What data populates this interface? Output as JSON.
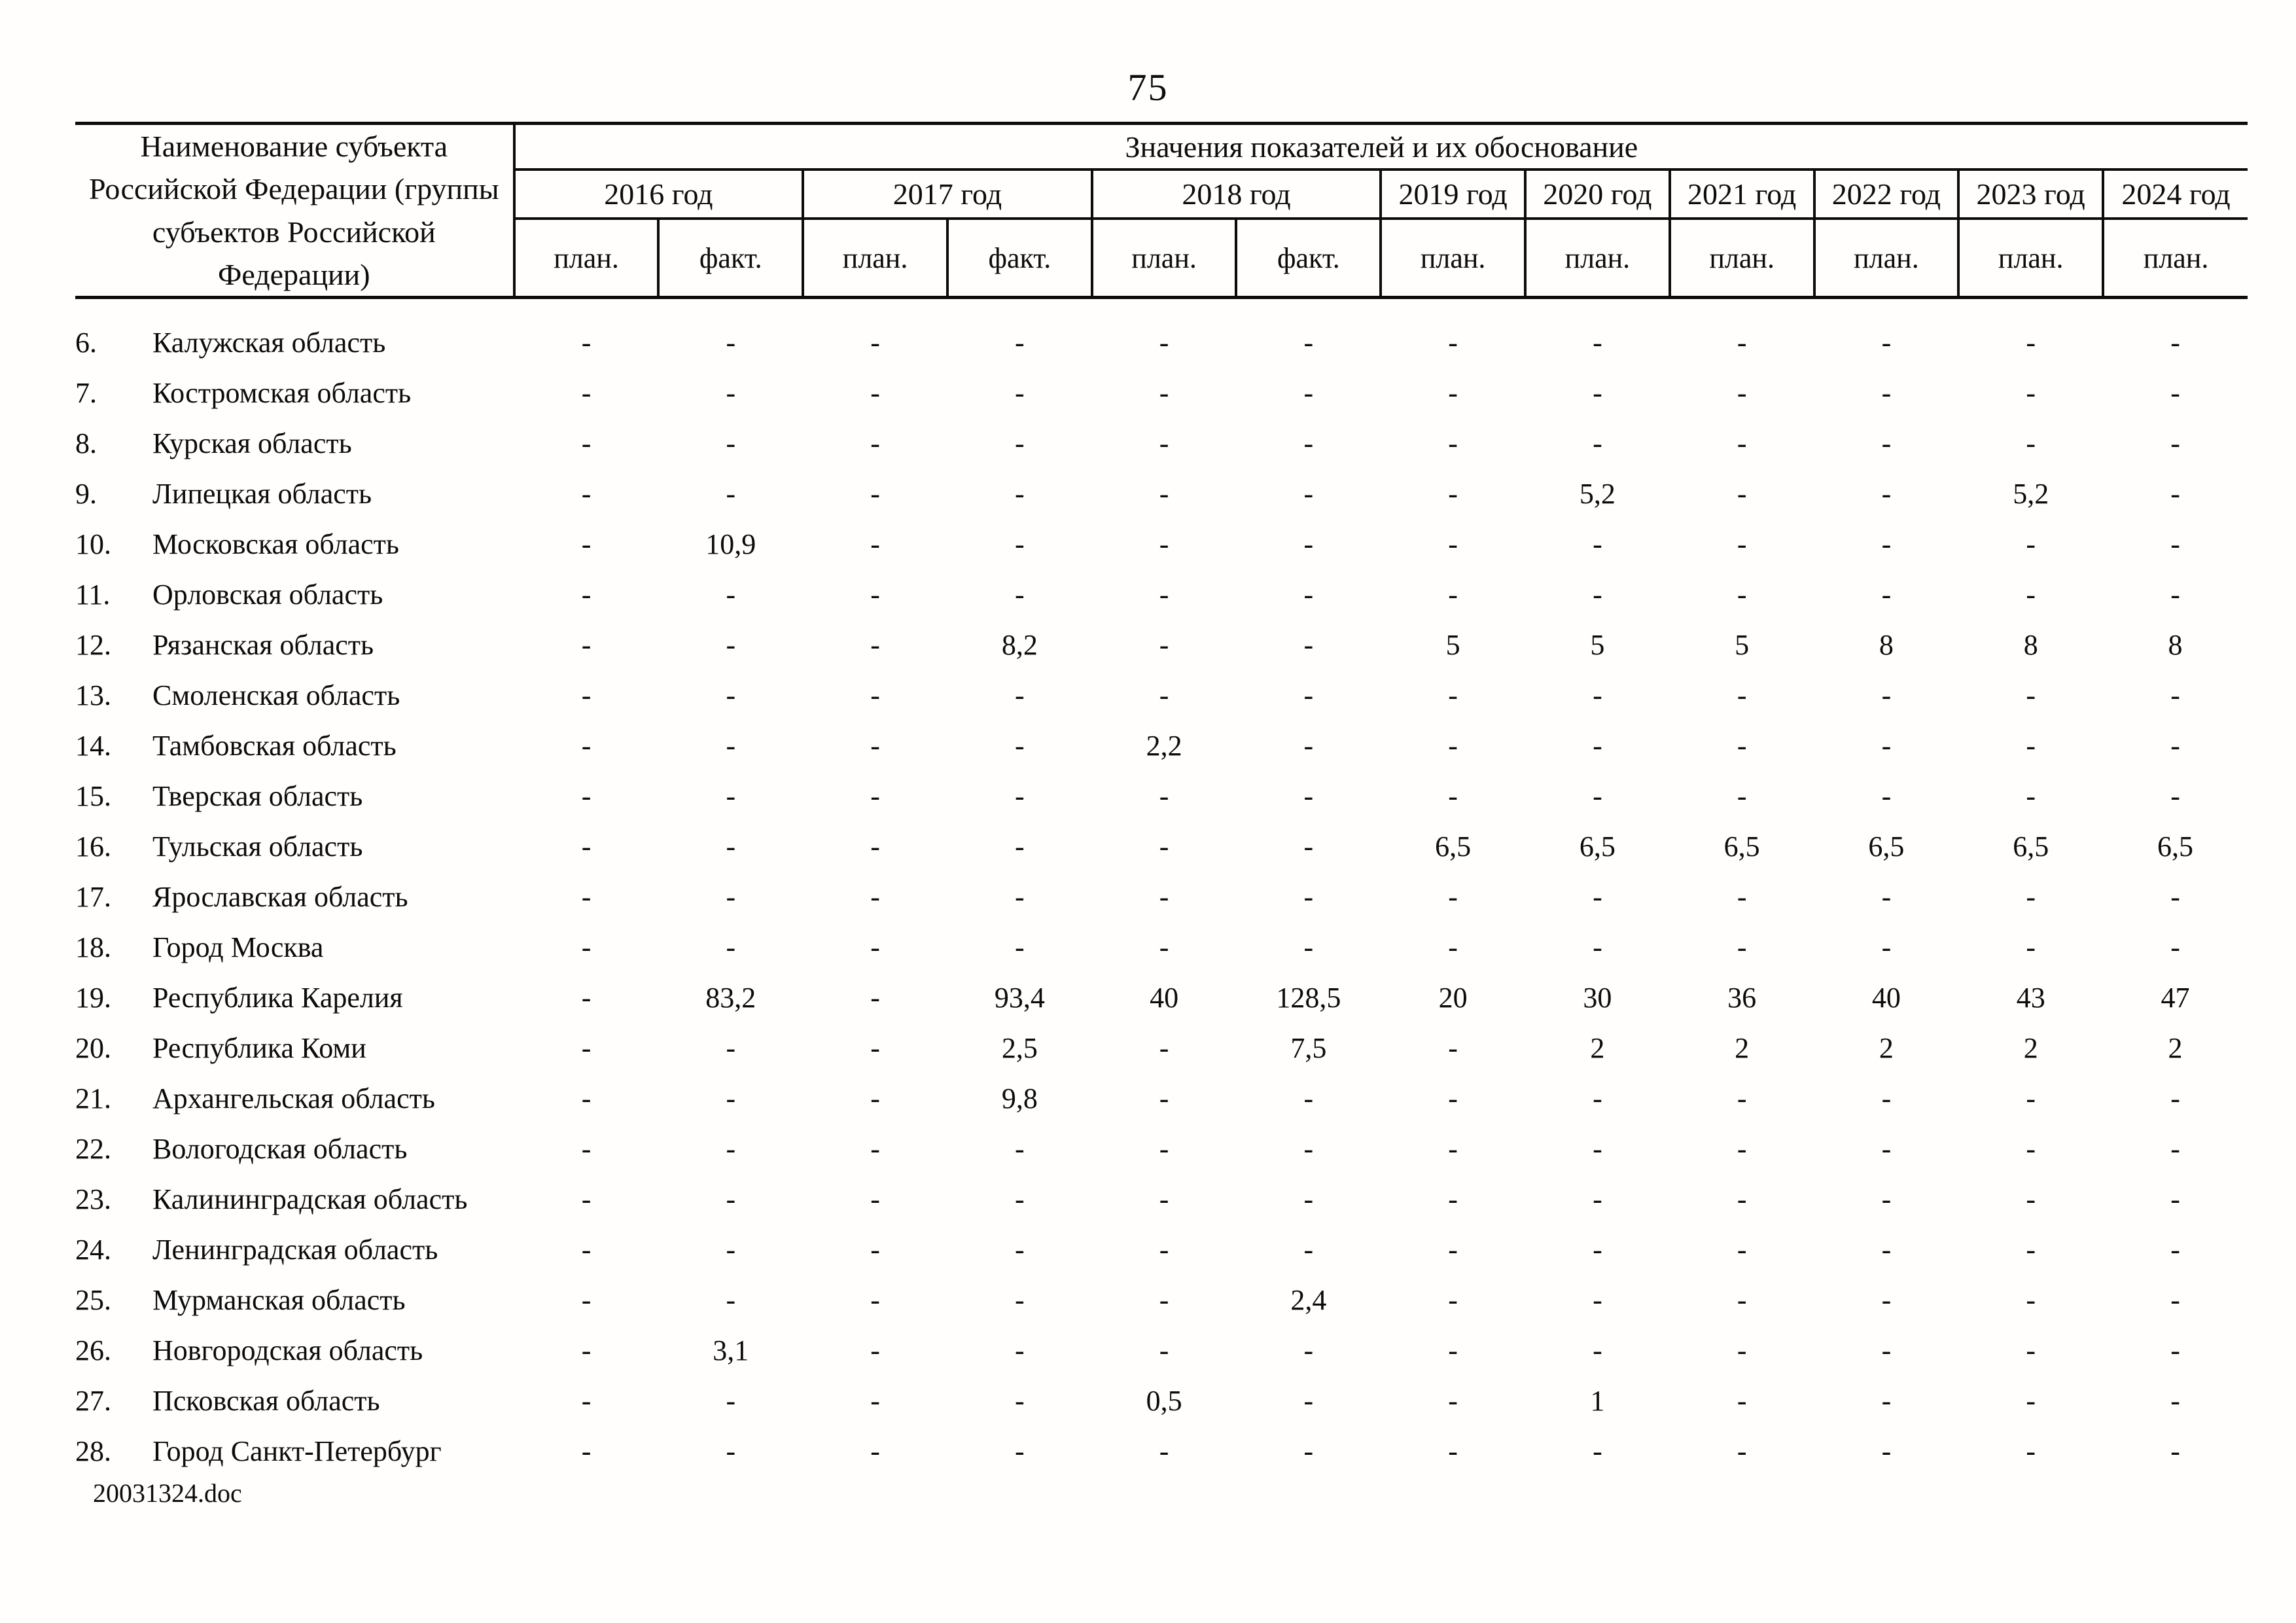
{
  "page": {
    "number": "75",
    "footer": "20031324.doc"
  },
  "table": {
    "header": {
      "name_column": "Наименование субъекта Российской Федерации (группы субъектов Российской Федерации)",
      "values_title": "Значения показателей и их обоснование",
      "year_groups": [
        {
          "label": "2016 год",
          "sub": [
            "план.",
            "факт."
          ]
        },
        {
          "label": "2017 год",
          "sub": [
            "план.",
            "факт."
          ]
        },
        {
          "label": "2018 год",
          "sub": [
            "план.",
            "факт."
          ]
        },
        {
          "label": "2019 год",
          "sub": [
            "план."
          ]
        },
        {
          "label": "2020 год",
          "sub": [
            "план."
          ]
        },
        {
          "label": "2021 год",
          "sub": [
            "план."
          ]
        },
        {
          "label": "2022 год",
          "sub": [
            "план."
          ]
        },
        {
          "label": "2023 год",
          "sub": [
            "план."
          ]
        },
        {
          "label": "2024 год",
          "sub": [
            "план."
          ]
        }
      ],
      "value_columns": [
        "2016 план.",
        "2016 факт.",
        "2017 план.",
        "2017 факт.",
        "2018 план.",
        "2018 факт.",
        "2019 план.",
        "2020 план.",
        "2021 план.",
        "2022 план.",
        "2023 план.",
        "2024 план."
      ]
    },
    "rows": [
      {
        "num": "6.",
        "name": "Калужская область",
        "values": [
          "-",
          "-",
          "-",
          "-",
          "-",
          "-",
          "-",
          "-",
          "-",
          "-",
          "-",
          "-"
        ]
      },
      {
        "num": "7.",
        "name": "Костромская область",
        "values": [
          "-",
          "-",
          "-",
          "-",
          "-",
          "-",
          "-",
          "-",
          "-",
          "-",
          "-",
          "-"
        ]
      },
      {
        "num": "8.",
        "name": "Курская область",
        "values": [
          "-",
          "-",
          "-",
          "-",
          "-",
          "-",
          "-",
          "-",
          "-",
          "-",
          "-",
          "-"
        ]
      },
      {
        "num": "9.",
        "name": "Липецкая область",
        "values": [
          "-",
          "-",
          "-",
          "-",
          "-",
          "-",
          "-",
          "5,2",
          "-",
          "-",
          "5,2",
          "-"
        ]
      },
      {
        "num": "10.",
        "name": "Московская область",
        "values": [
          "-",
          "10,9",
          "-",
          "-",
          "-",
          "-",
          "-",
          "-",
          "-",
          "-",
          "-",
          "-"
        ]
      },
      {
        "num": "11.",
        "name": "Орловская область",
        "values": [
          "-",
          "-",
          "-",
          "-",
          "-",
          "-",
          "-",
          "-",
          "-",
          "-",
          "-",
          "-"
        ]
      },
      {
        "num": "12.",
        "name": "Рязанская область",
        "values": [
          "-",
          "-",
          "-",
          "8,2",
          "-",
          "-",
          "5",
          "5",
          "5",
          "8",
          "8",
          "8"
        ]
      },
      {
        "num": "13.",
        "name": "Смоленская область",
        "values": [
          "-",
          "-",
          "-",
          "-",
          "-",
          "-",
          "-",
          "-",
          "-",
          "-",
          "-",
          "-"
        ]
      },
      {
        "num": "14.",
        "name": "Тамбовская область",
        "values": [
          "-",
          "-",
          "-",
          "-",
          "2,2",
          "-",
          "-",
          "-",
          "-",
          "-",
          "-",
          "-"
        ]
      },
      {
        "num": "15.",
        "name": "Тверская область",
        "values": [
          "-",
          "-",
          "-",
          "-",
          "-",
          "-",
          "-",
          "-",
          "-",
          "-",
          "-",
          "-"
        ]
      },
      {
        "num": "16.",
        "name": "Тульская область",
        "values": [
          "-",
          "-",
          "-",
          "-",
          "-",
          "-",
          "6,5",
          "6,5",
          "6,5",
          "6,5",
          "6,5",
          "6,5"
        ]
      },
      {
        "num": "17.",
        "name": "Ярославская область",
        "values": [
          "-",
          "-",
          "-",
          "-",
          "-",
          "-",
          "-",
          "-",
          "-",
          "-",
          "-",
          "-"
        ]
      },
      {
        "num": "18.",
        "name": "Город Москва",
        "values": [
          "-",
          "-",
          "-",
          "-",
          "-",
          "-",
          "-",
          "-",
          "-",
          "-",
          "-",
          "-"
        ]
      },
      {
        "num": "19.",
        "name": "Республика Карелия",
        "values": [
          "-",
          "83,2",
          "-",
          "93,4",
          "40",
          "128,5",
          "20",
          "30",
          "36",
          "40",
          "43",
          "47"
        ]
      },
      {
        "num": "20.",
        "name": "Республика Коми",
        "values": [
          "-",
          "-",
          "-",
          "2,5",
          "-",
          "7,5",
          "-",
          "2",
          "2",
          "2",
          "2",
          "2"
        ]
      },
      {
        "num": "21.",
        "name": "Архангельская область",
        "values": [
          "-",
          "-",
          "-",
          "9,8",
          "-",
          "-",
          "-",
          "-",
          "-",
          "-",
          "-",
          "-"
        ]
      },
      {
        "num": "22.",
        "name": "Вологодская область",
        "values": [
          "-",
          "-",
          "-",
          "-",
          "-",
          "-",
          "-",
          "-",
          "-",
          "-",
          "-",
          "-"
        ]
      },
      {
        "num": "23.",
        "name": "Калининградская область",
        "values": [
          "-",
          "-",
          "-",
          "-",
          "-",
          "-",
          "-",
          "-",
          "-",
          "-",
          "-",
          "-"
        ]
      },
      {
        "num": "24.",
        "name": "Ленинградская область",
        "values": [
          "-",
          "-",
          "-",
          "-",
          "-",
          "-",
          "-",
          "-",
          "-",
          "-",
          "-",
          "-"
        ]
      },
      {
        "num": "25.",
        "name": "Мурманская область",
        "values": [
          "-",
          "-",
          "-",
          "-",
          "-",
          "2,4",
          "-",
          "-",
          "-",
          "-",
          "-",
          "-"
        ]
      },
      {
        "num": "26.",
        "name": "Новгородская область",
        "values": [
          "-",
          "3,1",
          "-",
          "-",
          "-",
          "-",
          "-",
          "-",
          "-",
          "-",
          "-",
          "-"
        ]
      },
      {
        "num": "27.",
        "name": "Псковская область",
        "values": [
          "-",
          "-",
          "-",
          "-",
          "0,5",
          "-",
          "-",
          "1",
          "-",
          "-",
          "-",
          "-"
        ]
      },
      {
        "num": "28.",
        "name": "Город Санкт-Петербург",
        "values": [
          "-",
          "-",
          "-",
          "-",
          "-",
          "-",
          "-",
          "-",
          "-",
          "-",
          "-",
          "-"
        ]
      }
    ]
  }
}
